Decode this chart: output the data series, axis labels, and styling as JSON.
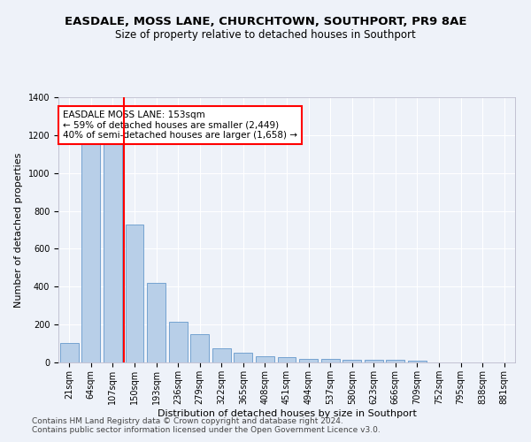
{
  "title": "EASDALE, MOSS LANE, CHURCHTOWN, SOUTHPORT, PR9 8AE",
  "subtitle": "Size of property relative to detached houses in Southport",
  "xlabel": "Distribution of detached houses by size in Southport",
  "ylabel": "Number of detached properties",
  "footer_line1": "Contains HM Land Registry data © Crown copyright and database right 2024.",
  "footer_line2": "Contains public sector information licensed under the Open Government Licence v3.0.",
  "categories": [
    "21sqm",
    "64sqm",
    "107sqm",
    "150sqm",
    "193sqm",
    "236sqm",
    "279sqm",
    "322sqm",
    "365sqm",
    "408sqm",
    "451sqm",
    "494sqm",
    "537sqm",
    "580sqm",
    "623sqm",
    "666sqm",
    "709sqm",
    "752sqm",
    "795sqm",
    "838sqm",
    "881sqm"
  ],
  "values": [
    105,
    1155,
    1155,
    730,
    420,
    215,
    150,
    75,
    50,
    35,
    28,
    20,
    17,
    15,
    15,
    14,
    10,
    2,
    1,
    1,
    1
  ],
  "bar_color": "#b8cfe8",
  "bar_edge_color": "#6699cc",
  "vline_x_index": 3,
  "vline_color": "red",
  "annotation_text": "EASDALE MOSS LANE: 153sqm\n← 59% of detached houses are smaller (2,449)\n40% of semi-detached houses are larger (1,658) →",
  "annotation_box_color": "white",
  "annotation_box_edge_color": "red",
  "ylim": [
    0,
    1400
  ],
  "yticks": [
    0,
    200,
    400,
    600,
    800,
    1000,
    1200,
    1400
  ],
  "background_color": "#eef2f9",
  "grid_color": "white",
  "title_fontsize": 9.5,
  "subtitle_fontsize": 8.5,
  "axis_label_fontsize": 8,
  "tick_fontsize": 7,
  "annotation_fontsize": 7.5,
  "footer_fontsize": 6.5
}
